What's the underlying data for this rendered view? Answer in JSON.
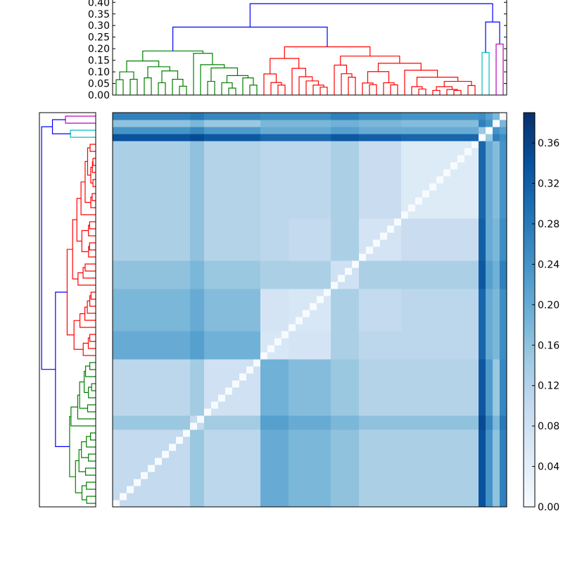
{
  "chart_data": {
    "type": "heatmap",
    "title": "",
    "description_kind": "clustered distance heatmap with row and column dendrograms",
    "leaf_count": 56,
    "dendrogram_axis": {
      "ylim": [
        0,
        0.41
      ],
      "ticks": [
        "0.00",
        "0.05",
        "0.10",
        "0.15",
        "0.20",
        "0.25",
        "0.30",
        "0.35",
        "0.40"
      ]
    },
    "colorbar": {
      "colormap": "Blues",
      "range": [
        0,
        0.39
      ],
      "ticks": [
        "0.00",
        "0.04",
        "0.08",
        "0.12",
        "0.16",
        "0.20",
        "0.24",
        "0.28",
        "0.32",
        "0.36"
      ]
    },
    "colormap_stops": [
      "#f7fbff",
      "#deebf7",
      "#c6dbef",
      "#9ecae1",
      "#6baed6",
      "#4292c6",
      "#2171b5",
      "#08519c",
      "#08306b"
    ],
    "link_colors": {
      "green": "#008000",
      "red": "#ff0000",
      "cyan": "#00bfbf",
      "magenta": "#bf00bf",
      "above_threshold": "#0000ff"
    },
    "tree": {
      "h": 0.394,
      "l": {
        "h": 0.293,
        "l": {
          "h": 0.19,
          "color": "green",
          "l": {
            "h": 0.147,
            "l": {
              "h": 0.1,
              "l": {
                "h": 0.066,
                "l": 0,
                "r": 1
              },
              "r": {
                "h": 0.068,
                "l": 2,
                "r": 3
              }
            },
            "r": {
              "h": 0.122,
              "l": {
                "h": 0.074,
                "l": 4,
                "r": 5
              },
              "r": {
                "h": 0.104,
                "l": {
                  "h": 0.053,
                  "l": 6,
                  "r": 7
                },
                "r": {
                  "h": 0.068,
                  "l": 8,
                  "r": {
                    "h": 0.038,
                    "l": 9,
                    "r": 10
                  }
                }
              }
            }
          },
          "r": {
            "h": 0.18,
            "l": 11,
            "r": {
              "h": 0.131,
              "l": 12,
              "r": {
                "h": 0.117,
                "l": {
                  "h": 0.059,
                  "l": 13,
                  "r": 14
                },
                "r": {
                  "h": 0.084,
                  "l": {
                    "h": 0.053,
                    "l": 15,
                    "r": {
                      "h": 0.03,
                      "l": 16,
                      "r": 17
                    }
                  },
                  "r": {
                    "h": 0.074,
                    "l": 18,
                    "r": {
                      "h": 0.043,
                      "l": 19,
                      "r": 20
                    }
                  }
                }
              }
            }
          }
        },
        "r": {
          "h": 0.208,
          "color": "red",
          "l": {
            "h": 0.158,
            "l": {
              "h": 0.091,
              "l": 21,
              "r": {
                "h": 0.054,
                "l": 22,
                "r": {
                  "h": 0.043,
                  "l": 23,
                  "r": 24
                }
              }
            },
            "r": {
              "h": 0.115,
              "l": 25,
              "r": {
                "h": 0.079,
                "l": 26,
                "r": {
                  "h": 0.061,
                  "l": 27,
                  "r": {
                    "h": 0.043,
                    "l": 28,
                    "r": {
                      "h": 0.034,
                      "l": 29,
                      "r": 30
                    }
                  }
                }
              }
            }
          },
          "r": {
            "h": 0.168,
            "l": {
              "h": 0.129,
              "l": 31,
              "r": {
                "h": 0.092,
                "l": 32,
                "r": {
                  "h": 0.077,
                  "l": 33,
                  "r": 34
                }
              }
            },
            "r": {
              "h": 0.137,
              "l": {
                "h": 0.101,
                "l": {
                  "h": 0.052,
                  "l": 35,
                  "r": {
                    "h": 0.045,
                    "l": 36,
                    "r": 37
                  }
                },
                "r": {
                  "h": 0.053,
                  "l": 38,
                  "r": {
                    "h": 0.044,
                    "l": 39,
                    "r": 40
                  }
                }
              },
              "r": {
                "h": 0.107,
                "l": 41,
                "r": {
                  "h": 0.077,
                  "l": {
                    "h": 0.036,
                    "l": 42,
                    "r": {
                      "h": 0.026,
                      "l": 43,
                      "r": 44
                    }
                  },
                  "r": {
                    "h": 0.059,
                    "l": {
                      "h": 0.036,
                      "l": {
                        "h": 0.02,
                        "l": 45,
                        "r": 46
                      },
                      "r": {
                        "h": 0.024,
                        "l": 47,
                        "r": {
                          "h": 0.02,
                          "l": 48,
                          "r": 49
                        }
                      }
                    },
                    "r": {
                      "h": 0.041,
                      "l": 50,
                      "r": 51
                    }
                  }
                }
              }
            }
          }
        }
      },
      "r": {
        "h": 0.315,
        "l": {
          "h": 0.184,
          "color": "cyan",
          "l": 52,
          "r": 53
        },
        "r": {
          "h": 0.22,
          "color": "magenta",
          "l": 54,
          "r": 55
        }
      }
    },
    "leaf_groups": [
      [
        0,
        10
      ],
      [
        11,
        12
      ],
      [
        13,
        20
      ],
      [
        21,
        24
      ],
      [
        25,
        30
      ],
      [
        31,
        34
      ],
      [
        35,
        40
      ],
      [
        41,
        51
      ],
      [
        52,
        52
      ],
      [
        53,
        53
      ],
      [
        54,
        54
      ],
      [
        55,
        55
      ]
    ],
    "group_mean_distances": [
      [
        0.1,
        0.15,
        0.11,
        0.2,
        0.18,
        0.16,
        0.13,
        0.13,
        0.34,
        0.24,
        0.16,
        0.27
      ],
      [
        0.15,
        0.1,
        0.14,
        0.22,
        0.2,
        0.18,
        0.16,
        0.16,
        0.35,
        0.26,
        0.18,
        0.28
      ],
      [
        0.11,
        0.14,
        0.08,
        0.19,
        0.17,
        0.15,
        0.12,
        0.12,
        0.33,
        0.23,
        0.15,
        0.26
      ],
      [
        0.2,
        0.22,
        0.19,
        0.06,
        0.07,
        0.13,
        0.11,
        0.11,
        0.31,
        0.2,
        0.18,
        0.25
      ],
      [
        0.18,
        0.2,
        0.17,
        0.07,
        0.06,
        0.13,
        0.1,
        0.11,
        0.31,
        0.2,
        0.18,
        0.25
      ],
      [
        0.16,
        0.18,
        0.15,
        0.13,
        0.13,
        0.08,
        0.13,
        0.13,
        0.33,
        0.22,
        0.19,
        0.27
      ],
      [
        0.13,
        0.16,
        0.12,
        0.11,
        0.1,
        0.13,
        0.07,
        0.09,
        0.32,
        0.2,
        0.18,
        0.25
      ],
      [
        0.13,
        0.16,
        0.12,
        0.11,
        0.11,
        0.13,
        0.09,
        0.05,
        0.31,
        0.2,
        0.17,
        0.24
      ],
      [
        0.34,
        0.35,
        0.33,
        0.31,
        0.31,
        0.33,
        0.32,
        0.31,
        0.0,
        0.15,
        0.27,
        0.25
      ],
      [
        0.24,
        0.26,
        0.23,
        0.2,
        0.2,
        0.22,
        0.2,
        0.2,
        0.15,
        0.0,
        0.24,
        0.22
      ],
      [
        0.16,
        0.18,
        0.15,
        0.18,
        0.18,
        0.19,
        0.18,
        0.17,
        0.27,
        0.24,
        0.0,
        0.18
      ],
      [
        0.27,
        0.28,
        0.26,
        0.25,
        0.25,
        0.27,
        0.25,
        0.24,
        0.25,
        0.22,
        0.18,
        0.0
      ]
    ]
  }
}
